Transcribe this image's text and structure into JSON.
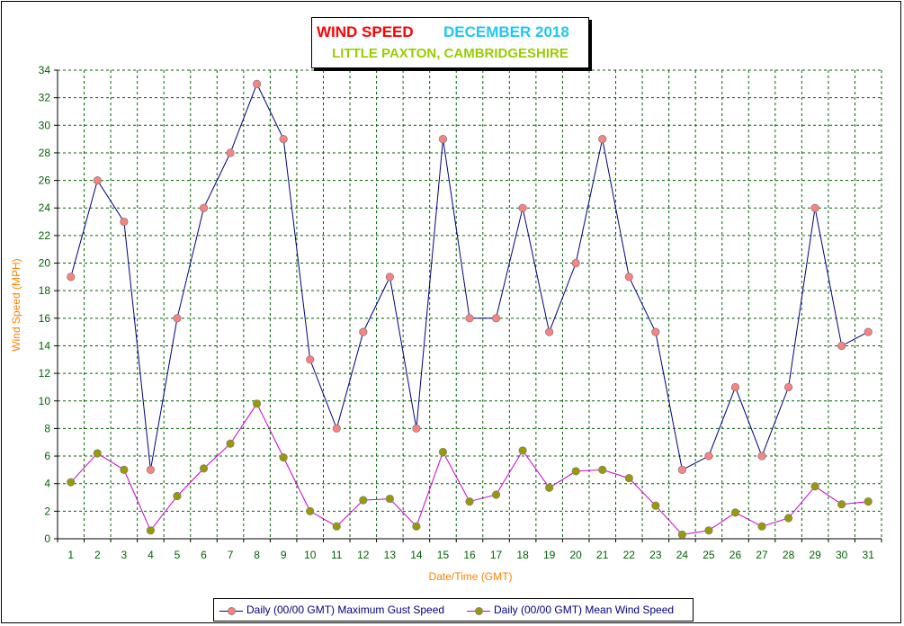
{
  "title": {
    "main": "WIND SPEED",
    "period": "DECEMBER 2018",
    "location": "LITTLE PAXTON, CAMBRIDGESHIRE",
    "main_color": "#ff0000",
    "period_color": "#1ec8f0",
    "location_color": "#99cc00"
  },
  "chart_data": {
    "type": "line",
    "title": "WIND SPEED   DECEMBER 2018 — LITTLE PAXTON, CAMBRIDGESHIRE",
    "xlabel": "Date/Time (GMT)",
    "ylabel": "Wind Speed (MPH)",
    "ylim": [
      0,
      34
    ],
    "ytick_step": 2,
    "grid": true,
    "legend_position": "bottom",
    "x": [
      1,
      2,
      3,
      4,
      5,
      6,
      7,
      8,
      9,
      10,
      11,
      12,
      13,
      14,
      15,
      16,
      17,
      18,
      19,
      20,
      21,
      22,
      23,
      24,
      25,
      26,
      27,
      28,
      29,
      30,
      31
    ],
    "series": [
      {
        "name": "Daily (00/00 GMT) Maximum Gust Speed",
        "line_color": "#000080",
        "marker_color": "#ff8080",
        "values": [
          19,
          26,
          23,
          5,
          16,
          24,
          28,
          33,
          29,
          13,
          8,
          15,
          19,
          8,
          29,
          16,
          16,
          24,
          15,
          20,
          29,
          19,
          15,
          5,
          6,
          11,
          6,
          11,
          24,
          14,
          15
        ]
      },
      {
        "name": "Daily (00/00 GMT) Mean Wind Speed",
        "line_color": "#cc00cc",
        "marker_color": "#999900",
        "values": [
          4.1,
          6.2,
          5.0,
          0.6,
          3.1,
          5.1,
          6.9,
          9.8,
          5.9,
          2.0,
          0.9,
          2.8,
          2.9,
          0.9,
          6.3,
          2.7,
          3.2,
          6.4,
          3.7,
          4.9,
          5.0,
          4.4,
          2.4,
          0.3,
          0.6,
          1.9,
          0.9,
          1.5,
          3.8,
          2.5,
          2.7
        ]
      }
    ]
  }
}
